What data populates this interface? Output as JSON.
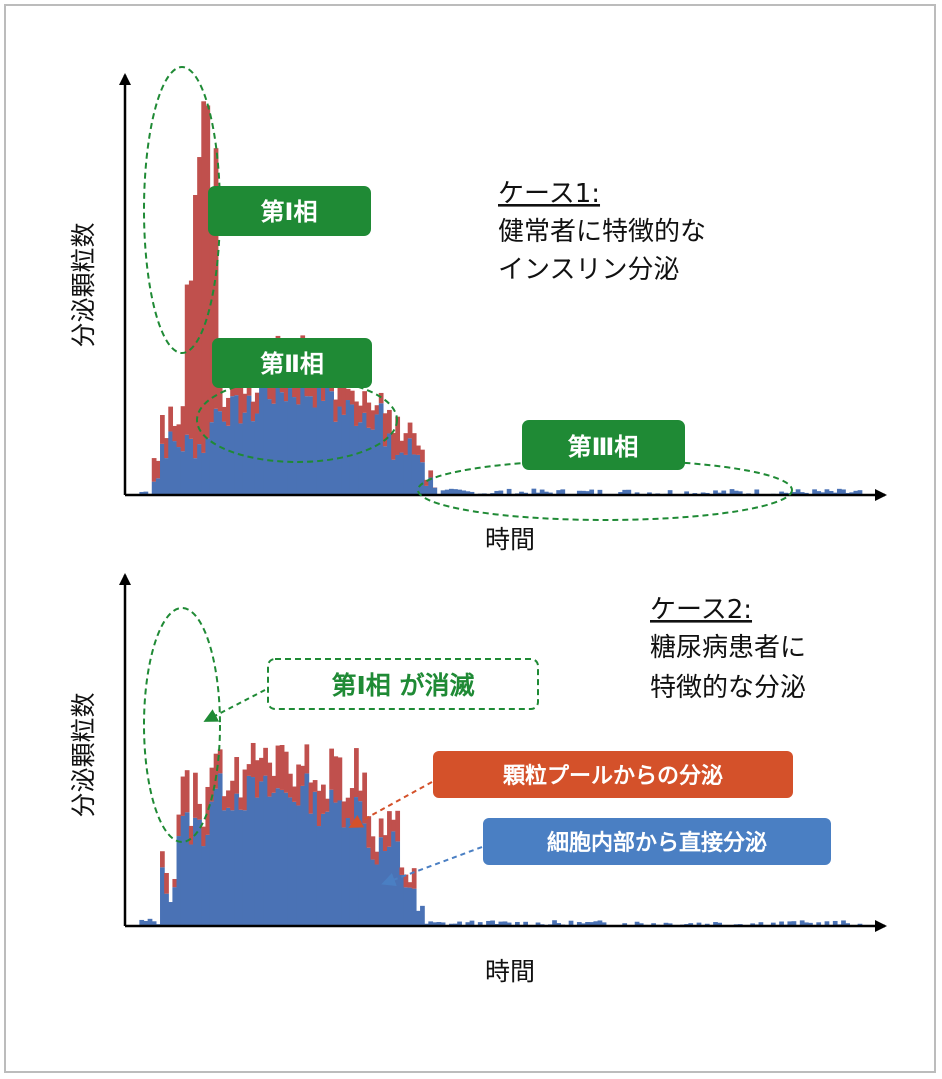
{
  "chart_data": [
    {
      "type": "bar",
      "stacked": true,
      "ylabel": "分泌顆粒数",
      "xlabel": "時間",
      "case_title": "ケース1:",
      "case_desc": [
        "健常者に特徴的な",
        "インスリン分泌"
      ],
      "ylim": [
        0,
        100
      ],
      "series": [
        {
          "color": "#4a72b5",
          "segments": [
            {
              "x0": 3,
              "x1": 6,
              "base": 0.5,
              "amp": 0.6
            },
            {
              "x0": 6,
              "x1": 8,
              "base": 4,
              "amp": 2
            },
            {
              "x0": 8,
              "x1": 20,
              "base": 12,
              "amp": 4
            },
            {
              "x0": 20,
              "x1": 32,
              "base": 20,
              "amp": 4
            },
            {
              "x0": 32,
              "x1": 50,
              "base": 25,
              "amp": 5
            },
            {
              "x0": 50,
              "x1": 62,
              "base": 20,
              "amp": 5
            },
            {
              "x0": 62,
              "x1": 72,
              "base": 10,
              "amp": 5
            },
            {
              "x0": 72,
              "x1": 75,
              "base": 3,
              "amp": 2
            },
            {
              "x0": 75,
              "x1": 178,
              "base": 0.4,
              "amp": 0.9
            }
          ]
        },
        {
          "color": "#c0504d",
          "segments": [
            {
              "x0": 6,
              "x1": 8,
              "base": 4,
              "amp": 2
            },
            {
              "x0": 8,
              "x1": 12,
              "base": 4,
              "amp": 3
            },
            {
              "x0": 12,
              "x1": 14,
              "base": 8,
              "amp": 3
            },
            {
              "x0": 14,
              "x1": 16,
              "base": 35,
              "amp": 10
            },
            {
              "x0": 16,
              "x1": 18,
              "base": 65,
              "amp": 8
            },
            {
              "x0": 18,
              "x1": 20,
              "base": 80,
              "amp": 8
            },
            {
              "x0": 20,
              "x1": 22,
              "base": 55,
              "amp": 10
            },
            {
              "x0": 22,
              "x1": 50,
              "base": 8,
              "amp": 5
            },
            {
              "x0": 50,
              "x1": 62,
              "base": 6,
              "amp": 4
            },
            {
              "x0": 62,
              "x1": 72,
              "base": 6,
              "amp": 4
            },
            {
              "x0": 72,
              "x1": 75,
              "base": 1,
              "amp": 1
            }
          ]
        }
      ],
      "annotations": {
        "phase1": "第Ⅰ相",
        "phase2": "第Ⅱ相",
        "phase3": "第Ⅲ相"
      }
    },
    {
      "type": "bar",
      "stacked": true,
      "ylabel": "分泌顆粒数",
      "xlabel": "時間",
      "case_title": "ケース2:",
      "case_desc": [
        "糖尿病患者に",
        "特徴的な分泌"
      ],
      "ylim": [
        0,
        100
      ],
      "series": [
        {
          "color": "#4a72b5",
          "segments": [
            {
              "x0": 3,
              "x1": 8,
              "base": 1,
              "amp": 1
            },
            {
              "x0": 8,
              "x1": 12,
              "base": 12,
              "amp": 6
            },
            {
              "x0": 12,
              "x1": 20,
              "base": 28,
              "amp": 6
            },
            {
              "x0": 20,
              "x1": 45,
              "base": 38,
              "amp": 6
            },
            {
              "x0": 45,
              "x1": 58,
              "base": 34,
              "amp": 6
            },
            {
              "x0": 58,
              "x1": 66,
              "base": 22,
              "amp": 6
            },
            {
              "x0": 66,
              "x1": 70,
              "base": 12,
              "amp": 4
            },
            {
              "x0": 70,
              "x1": 72,
              "base": 4,
              "amp": 2
            },
            {
              "x0": 72,
              "x1": 178,
              "base": 0.4,
              "amp": 1
            }
          ]
        },
        {
          "color": "#c0504d",
          "segments": [
            {
              "x0": 8,
              "x1": 12,
              "base": 2,
              "amp": 4
            },
            {
              "x0": 12,
              "x1": 20,
              "base": 9,
              "amp": 5
            },
            {
              "x0": 20,
              "x1": 45,
              "base": 8,
              "amp": 5
            },
            {
              "x0": 45,
              "x1": 58,
              "base": 9,
              "amp": 6
            },
            {
              "x0": 58,
              "x1": 66,
              "base": 6,
              "amp": 5
            },
            {
              "x0": 66,
              "x1": 70,
              "base": 3,
              "amp": 3
            }
          ]
        }
      ],
      "annotations": {
        "phase1_lost": "第Ⅰ相 が消滅",
        "pool_label": "顆粒プールからの分泌",
        "direct_label": "細胞内部から直接分泌"
      }
    }
  ],
  "colors": {
    "red": "#c0504d",
    "blue": "#4a72b5",
    "green": "#1f8a35",
    "orange": "#d4512a",
    "lightblue": "#4a7fc3"
  }
}
